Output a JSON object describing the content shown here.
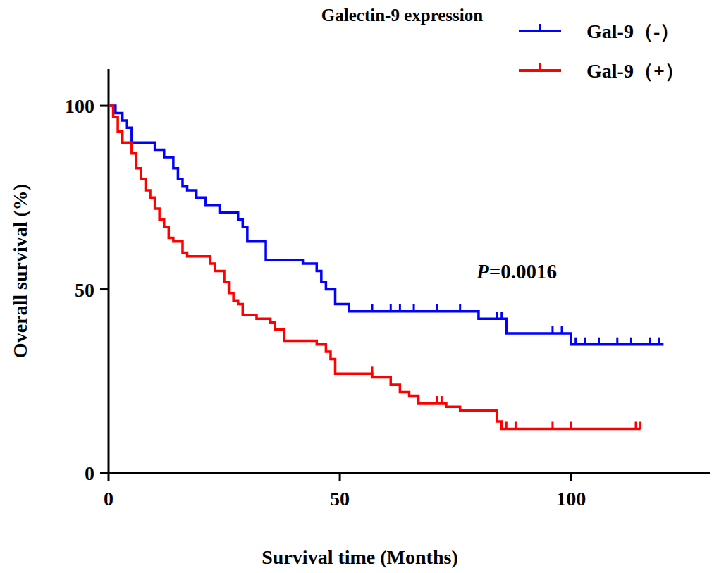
{
  "chart_data": {
    "type": "line",
    "title": "Galectin-9 expression",
    "x_label": "Survival time (Months)",
    "y_label": "Overall survival (%)",
    "annotation": "P=0.0016",
    "line_style": "step",
    "legend": "upper right",
    "xlim": [
      0,
      130
    ],
    "ylim": [
      0,
      110
    ],
    "xticks": [
      0,
      50,
      100
    ],
    "yticks": [
      0,
      50,
      100
    ],
    "series": [
      {
        "name": "Gal-9（-）",
        "color": "#0000ff",
        "x": [
          0,
          1.5,
          3,
          4,
          5,
          10,
          12,
          14,
          15,
          16,
          17,
          19,
          21,
          24,
          28,
          29,
          30,
          34,
          42,
          45,
          46,
          47,
          49,
          52,
          80,
          86,
          100,
          120
        ],
        "values": [
          100,
          98,
          96,
          94,
          90,
          88,
          86,
          83,
          80,
          78,
          77,
          75,
          73,
          71,
          69,
          67,
          63,
          58,
          57,
          55,
          52,
          50,
          46,
          44,
          42,
          38,
          35,
          35
        ],
        "censored": {
          "x": [
            57,
            61,
            63,
            66,
            71,
            76,
            84,
            85,
            96,
            98,
            101,
            103,
            106,
            110,
            113,
            117,
            119
          ],
          "values": [
            44,
            44,
            44,
            44,
            44,
            44,
            42,
            42,
            38,
            38,
            35,
            35,
            35,
            35,
            35,
            35,
            35
          ]
        }
      },
      {
        "name": "Gal-9（+）",
        "color": "#ff0000",
        "x": [
          0,
          1,
          2,
          3,
          5,
          6,
          7,
          8,
          9,
          10,
          11,
          12,
          13,
          14,
          16,
          17,
          22,
          23,
          25,
          26,
          27,
          28,
          29,
          32,
          35,
          36,
          38,
          45,
          47,
          48,
          49,
          56,
          57,
          61,
          63,
          65,
          67,
          73,
          76,
          84,
          85,
          115
        ],
        "values": [
          100,
          97,
          93,
          90,
          87,
          83,
          80,
          77,
          75,
          72,
          69,
          67,
          64,
          63,
          60,
          59,
          57,
          55,
          52,
          49,
          47,
          46,
          43,
          42,
          41,
          39,
          36,
          35,
          33,
          31,
          27,
          27,
          26,
          24,
          22,
          21,
          19,
          18,
          17,
          14,
          12,
          12
        ],
        "censored": {
          "x": [
            57,
            71,
            72,
            86,
            88,
            96,
            100,
            114,
            115
          ],
          "values": [
            27,
            19,
            19,
            12,
            12,
            12,
            12,
            12,
            12
          ]
        }
      }
    ]
  }
}
